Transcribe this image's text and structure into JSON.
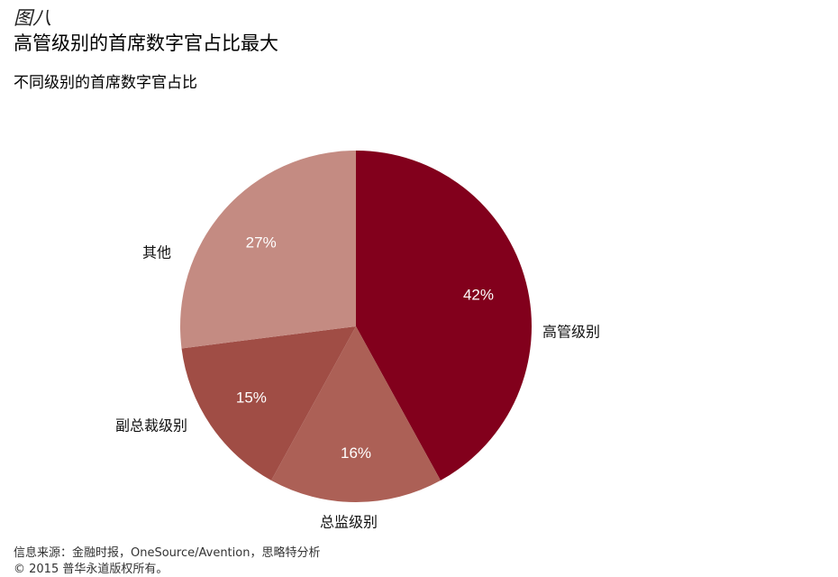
{
  "figure_label": "图八",
  "title": "高管级别的首席数字官占比最大",
  "subtitle": "不同级别的首席数字官占比",
  "chart_data": {
    "type": "pie",
    "title": "不同级别的首席数字官占比",
    "slices": [
      {
        "label": "高管级别",
        "value": 42,
        "value_label": "42%",
        "color": "#82001c"
      },
      {
        "label": "总监级别",
        "value": 16,
        "value_label": "16%",
        "color": "#ac6056"
      },
      {
        "label": "副总裁级别",
        "value": 15,
        "value_label": "15%",
        "color": "#a04d45"
      },
      {
        "label": "其他",
        "value": 27,
        "value_label": "27%",
        "color": "#c48b82"
      }
    ],
    "start": "12 o'clock",
    "direction": "clockwise",
    "labels_outside": true,
    "percent_labels_inside": true
  },
  "footer": {
    "source": "信息来源：金融时报，OneSource/Avention，思略特分析",
    "copyright": "© 2015 普华永道版权所有。"
  }
}
